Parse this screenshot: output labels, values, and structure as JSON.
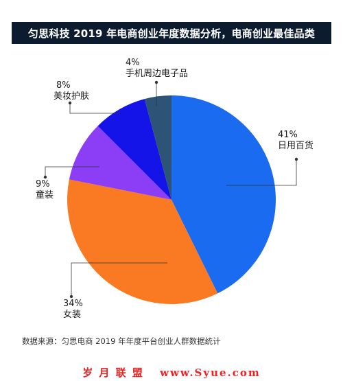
{
  "title": "匀思科技 2019 年电商创业年度数据分析，电商创业最佳品类",
  "source": "数据来源：匀思电商 2019 年年度平台创业人群数据统计",
  "watermark": {
    "cn": "岁 月 联 盟",
    "url": "www.Syue.com"
  },
  "chart_data": {
    "type": "pie",
    "start_angle": "12 o'clock, clockwise",
    "slices": [
      {
        "label": "日用百货",
        "percent_text": "41%",
        "value": 41,
        "color": "#1a6bf0"
      },
      {
        "label": "女装",
        "percent_text": "34%",
        "value": 34,
        "color": "#f97a22"
      },
      {
        "label": "童装",
        "percent_text": "9%",
        "value": 9,
        "color": "#8b3ef5"
      },
      {
        "label": "美妆护肤",
        "percent_text": "8%",
        "value": 8,
        "color": "#1414e8"
      },
      {
        "label": "手机周边电子品",
        "percent_text": "4%",
        "value": 4,
        "color": "#2d5377"
      }
    ]
  }
}
